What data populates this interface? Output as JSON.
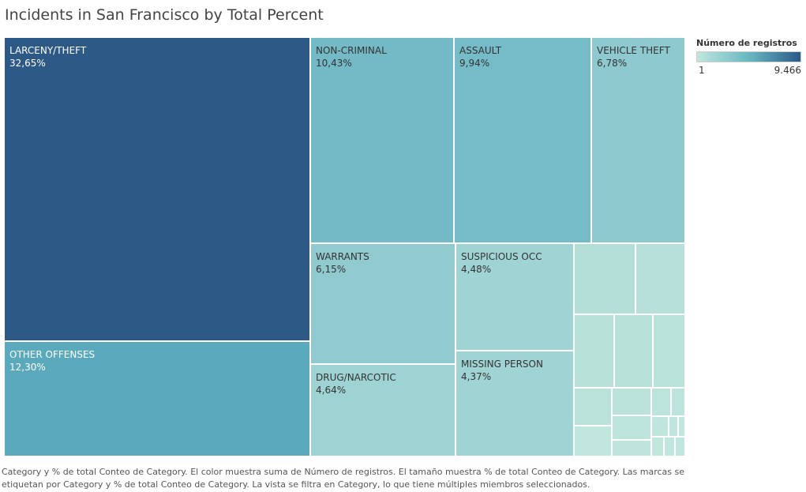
{
  "chart_data": {
    "type": "treemap",
    "title": "Incidents in San Francisco by Total Percent",
    "color_legend": {
      "title": "Número de registros",
      "min": "1",
      "max": "9.466"
    },
    "tiles": [
      {
        "label": "LARCENY/THEFT",
        "value_label": "32,65%",
        "value": 32.65,
        "color": "#2c5985",
        "text_color": "#ffffff"
      },
      {
        "label": "OTHER OFFENSES",
        "value_label": "12,30%",
        "value": 12.3,
        "color": "#5ba9bd",
        "text_color": "#ffffff"
      },
      {
        "label": "NON-CRIMINAL",
        "value_label": "10,43%",
        "value": 10.43,
        "color": "#74b9c6",
        "text_color": "#333333"
      },
      {
        "label": "ASSAULT",
        "value_label": "9,94%",
        "value": 9.94,
        "color": "#76bcc8",
        "text_color": "#333333"
      },
      {
        "label": "VEHICLE THEFT",
        "value_label": "6,78%",
        "value": 6.78,
        "color": "#8ec9cf",
        "text_color": "#333333"
      },
      {
        "label": "WARRANTS",
        "value_label": "6,15%",
        "value": 6.15,
        "color": "#90cacf",
        "text_color": "#333333"
      },
      {
        "label": "DRUG/NARCOTIC",
        "value_label": "4,64%",
        "value": 4.64,
        "color": "#9fd3d3",
        "text_color": "#333333"
      },
      {
        "label": "SUSPICIOUS OCC",
        "value_label": "4,48%",
        "value": 4.48,
        "color": "#a0d3d3",
        "text_color": "#333333"
      },
      {
        "label": "MISSING PERSON",
        "value_label": "4,37%",
        "value": 4.37,
        "color": "#a0d3d3",
        "text_color": "#333333"
      },
      {
        "label": "",
        "value_label": "",
        "value": 1.6,
        "color": "#b4dfd8",
        "text_color": "#333333"
      },
      {
        "label": "",
        "value_label": "",
        "value": 1.6,
        "color": "#b6e0d9",
        "text_color": "#333333"
      },
      {
        "label": "",
        "value_label": "",
        "value": 1.2,
        "color": "#b7e1d9",
        "text_color": "#333333"
      },
      {
        "label": "",
        "value_label": "",
        "value": 1.2,
        "color": "#b8e1da",
        "text_color": "#333333"
      },
      {
        "label": "",
        "value_label": "",
        "value": 1.2,
        "color": "#b9e2da",
        "text_color": "#333333"
      },
      {
        "label": "",
        "value_label": "",
        "value": 0.5,
        "color": "#bae2db",
        "text_color": "#333333"
      },
      {
        "label": "",
        "value_label": "",
        "value": 0.5,
        "color": "#bbe3db",
        "text_color": "#333333"
      },
      {
        "label": "",
        "value_label": "",
        "value": 0.4,
        "color": "#bce3dc",
        "text_color": "#333333"
      },
      {
        "label": "",
        "value_label": "",
        "value": 0.4,
        "color": "#bde4dc",
        "text_color": "#333333"
      },
      {
        "label": "",
        "value_label": "",
        "value": 0.3,
        "color": "#bde4dc",
        "text_color": "#333333"
      },
      {
        "label": "",
        "value_label": "",
        "value": 0.2,
        "color": "#bee4dd",
        "text_color": "#333333"
      },
      {
        "label": "",
        "value_label": "",
        "value": 0.1,
        "color": "#bfe5dd",
        "text_color": "#333333"
      },
      {
        "label": "",
        "value_label": "",
        "value": 0.1,
        "color": "#c0e5de",
        "text_color": "#333333"
      },
      {
        "label": "",
        "value_label": "",
        "value": 0.1,
        "color": "#c0e5de",
        "text_color": "#333333"
      },
      {
        "label": "",
        "value_label": "",
        "value": 0.1,
        "color": "#c1e6de",
        "text_color": "#333333"
      },
      {
        "label": "",
        "value_label": "",
        "value": 0.1,
        "color": "#c1e6de",
        "text_color": "#333333"
      },
      {
        "label": "",
        "value_label": "",
        "value": 0.1,
        "color": "#c1e6df",
        "text_color": "#333333"
      },
      {
        "label": "",
        "value_label": "",
        "value": 0.1,
        "color": "#c1e6df",
        "text_color": "#333333"
      }
    ]
  },
  "caption": "Category y % de total Conteo de Category.  El color muestra suma de Número de registros.  El tamaño muestra % de total Conteo de Category.  Las marcas se etiquetan por Category y % de total Conteo de Category. La vista se filtra en Category, lo que tiene múltiples miembros seleccionados."
}
